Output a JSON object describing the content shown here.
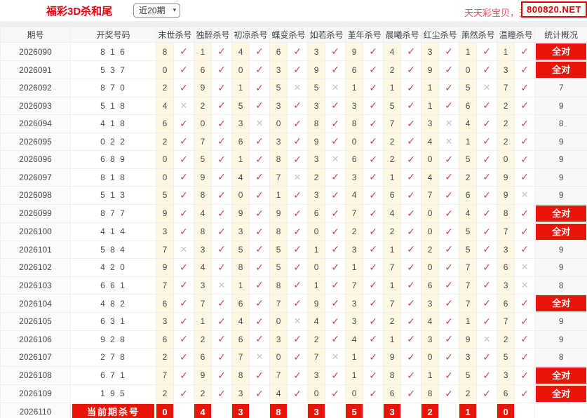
{
  "page": {
    "title": "福彩3D杀和尾",
    "range_selected": "近20期",
    "promo_text": "天天彩宝贝，天",
    "site_badge": "800820.NET"
  },
  "colors": {
    "accent_red": "#e60012",
    "badge_red": "#e9140a",
    "check_red": "#c9455a",
    "cross_gray": "#c6c6c6",
    "kill_cell_yellow": "#fcf8e2"
  },
  "icons": {
    "check": "✓",
    "cross": "✕",
    "chevron_down": "▾"
  },
  "table": {
    "headers": {
      "period": "期号",
      "draw": "开奖号码",
      "kills": [
        "末世杀号",
        "独醉杀号",
        "初凉杀号",
        "蝶变杀号",
        "如若杀号",
        "堇年杀号",
        "晨曦杀号",
        "红尘杀号",
        "萧然杀号",
        "温瞳杀号"
      ],
      "stats": "统计概况"
    },
    "all_correct_label": "全对",
    "rows": [
      {
        "period": "2026090",
        "draw": "8 1 6",
        "kills": [
          [
            "8",
            1
          ],
          [
            "1",
            1
          ],
          [
            "4",
            1
          ],
          [
            "6",
            1
          ],
          [
            "3",
            1
          ],
          [
            "9",
            1
          ],
          [
            "4",
            1
          ],
          [
            "3",
            1
          ],
          [
            "1",
            1
          ],
          [
            "1",
            1
          ]
        ],
        "stat": "全对"
      },
      {
        "period": "2026091",
        "draw": "5 3 7",
        "kills": [
          [
            "0",
            1
          ],
          [
            "6",
            1
          ],
          [
            "0",
            1
          ],
          [
            "3",
            1
          ],
          [
            "9",
            1
          ],
          [
            "6",
            1
          ],
          [
            "2",
            1
          ],
          [
            "9",
            1
          ],
          [
            "0",
            1
          ],
          [
            "3",
            1
          ]
        ],
        "stat": "全对"
      },
      {
        "period": "2026092",
        "draw": "8 7 0",
        "kills": [
          [
            "2",
            1
          ],
          [
            "9",
            1
          ],
          [
            "1",
            1
          ],
          [
            "5",
            0
          ],
          [
            "5",
            0
          ],
          [
            "1",
            1
          ],
          [
            "1",
            1
          ],
          [
            "1",
            1
          ],
          [
            "5",
            0
          ],
          [
            "7",
            1
          ]
        ],
        "stat": "7"
      },
      {
        "period": "2026093",
        "draw": "5 1 8",
        "kills": [
          [
            "4",
            0
          ],
          [
            "2",
            1
          ],
          [
            "5",
            1
          ],
          [
            "3",
            1
          ],
          [
            "3",
            1
          ],
          [
            "3",
            1
          ],
          [
            "5",
            1
          ],
          [
            "1",
            1
          ],
          [
            "6",
            1
          ],
          [
            "2",
            1
          ]
        ],
        "stat": "9"
      },
      {
        "period": "2026094",
        "draw": "4 1 8",
        "kills": [
          [
            "6",
            1
          ],
          [
            "0",
            1
          ],
          [
            "3",
            0
          ],
          [
            "0",
            1
          ],
          [
            "8",
            1
          ],
          [
            "8",
            1
          ],
          [
            "7",
            1
          ],
          [
            "3",
            0
          ],
          [
            "4",
            1
          ],
          [
            "2",
            1
          ]
        ],
        "stat": "8"
      },
      {
        "period": "2026095",
        "draw": "0 2 2",
        "kills": [
          [
            "2",
            1
          ],
          [
            "7",
            1
          ],
          [
            "6",
            1
          ],
          [
            "3",
            1
          ],
          [
            "9",
            1
          ],
          [
            "0",
            1
          ],
          [
            "2",
            1
          ],
          [
            "4",
            0
          ],
          [
            "1",
            1
          ],
          [
            "2",
            1
          ]
        ],
        "stat": "9"
      },
      {
        "period": "2026096",
        "draw": "6 8 9",
        "kills": [
          [
            "0",
            1
          ],
          [
            "5",
            1
          ],
          [
            "1",
            1
          ],
          [
            "8",
            1
          ],
          [
            "3",
            0
          ],
          [
            "6",
            1
          ],
          [
            "2",
            1
          ],
          [
            "0",
            1
          ],
          [
            "5",
            1
          ],
          [
            "0",
            1
          ]
        ],
        "stat": "9"
      },
      {
        "period": "2026097",
        "draw": "8 1 8",
        "kills": [
          [
            "0",
            1
          ],
          [
            "9",
            1
          ],
          [
            "4",
            1
          ],
          [
            "7",
            0
          ],
          [
            "2",
            1
          ],
          [
            "3",
            1
          ],
          [
            "1",
            1
          ],
          [
            "4",
            1
          ],
          [
            "2",
            1
          ],
          [
            "9",
            1
          ]
        ],
        "stat": "9"
      },
      {
        "period": "2026098",
        "draw": "5 1 3",
        "kills": [
          [
            "5",
            1
          ],
          [
            "8",
            1
          ],
          [
            "0",
            1
          ],
          [
            "1",
            1
          ],
          [
            "3",
            1
          ],
          [
            "4",
            1
          ],
          [
            "6",
            1
          ],
          [
            "7",
            1
          ],
          [
            "6",
            1
          ],
          [
            "9",
            0
          ]
        ],
        "stat": "9"
      },
      {
        "period": "2026099",
        "draw": "8 7 7",
        "kills": [
          [
            "9",
            1
          ],
          [
            "4",
            1
          ],
          [
            "9",
            1
          ],
          [
            "9",
            1
          ],
          [
            "6",
            1
          ],
          [
            "7",
            1
          ],
          [
            "4",
            1
          ],
          [
            "0",
            1
          ],
          [
            "4",
            1
          ],
          [
            "8",
            1
          ]
        ],
        "stat": "全对"
      },
      {
        "period": "2026100",
        "draw": "4 1 4",
        "kills": [
          [
            "3",
            1
          ],
          [
            "8",
            1
          ],
          [
            "3",
            1
          ],
          [
            "8",
            1
          ],
          [
            "0",
            1
          ],
          [
            "2",
            1
          ],
          [
            "2",
            1
          ],
          [
            "0",
            1
          ],
          [
            "5",
            1
          ],
          [
            "7",
            1
          ]
        ],
        "stat": "全对"
      },
      {
        "period": "2026101",
        "draw": "5 8 4",
        "kills": [
          [
            "7",
            0
          ],
          [
            "3",
            1
          ],
          [
            "5",
            1
          ],
          [
            "5",
            1
          ],
          [
            "1",
            1
          ],
          [
            "3",
            1
          ],
          [
            "1",
            1
          ],
          [
            "2",
            1
          ],
          [
            "5",
            1
          ],
          [
            "3",
            1
          ]
        ],
        "stat": "9"
      },
      {
        "period": "2026102",
        "draw": "4 2 0",
        "kills": [
          [
            "9",
            1
          ],
          [
            "4",
            1
          ],
          [
            "8",
            1
          ],
          [
            "5",
            1
          ],
          [
            "0",
            1
          ],
          [
            "1",
            1
          ],
          [
            "7",
            1
          ],
          [
            "0",
            1
          ],
          [
            "7",
            1
          ],
          [
            "6",
            0
          ]
        ],
        "stat": "9"
      },
      {
        "period": "2026103",
        "draw": "6 6 1",
        "kills": [
          [
            "7",
            1
          ],
          [
            "3",
            0
          ],
          [
            "1",
            1
          ],
          [
            "8",
            1
          ],
          [
            "1",
            1
          ],
          [
            "7",
            1
          ],
          [
            "1",
            1
          ],
          [
            "6",
            1
          ],
          [
            "7",
            1
          ],
          [
            "3",
            0
          ]
        ],
        "stat": "8"
      },
      {
        "period": "2026104",
        "draw": "4 8 2",
        "kills": [
          [
            "6",
            1
          ],
          [
            "7",
            1
          ],
          [
            "6",
            1
          ],
          [
            "7",
            1
          ],
          [
            "9",
            1
          ],
          [
            "3",
            1
          ],
          [
            "7",
            1
          ],
          [
            "3",
            1
          ],
          [
            "7",
            1
          ],
          [
            "6",
            1
          ]
        ],
        "stat": "全对"
      },
      {
        "period": "2026105",
        "draw": "6 3 1",
        "kills": [
          [
            "3",
            1
          ],
          [
            "1",
            1
          ],
          [
            "4",
            1
          ],
          [
            "0",
            0
          ],
          [
            "4",
            1
          ],
          [
            "3",
            1
          ],
          [
            "2",
            1
          ],
          [
            "4",
            1
          ],
          [
            "1",
            1
          ],
          [
            "7",
            1
          ]
        ],
        "stat": "9"
      },
      {
        "period": "2026106",
        "draw": "9 2 8",
        "kills": [
          [
            "6",
            1
          ],
          [
            "2",
            1
          ],
          [
            "6",
            1
          ],
          [
            "3",
            1
          ],
          [
            "2",
            1
          ],
          [
            "4",
            1
          ],
          [
            "1",
            1
          ],
          [
            "3",
            1
          ],
          [
            "9",
            0
          ],
          [
            "2",
            1
          ]
        ],
        "stat": "9"
      },
      {
        "period": "2026107",
        "draw": "2 7 8",
        "kills": [
          [
            "2",
            1
          ],
          [
            "6",
            1
          ],
          [
            "7",
            0
          ],
          [
            "0",
            1
          ],
          [
            "7",
            0
          ],
          [
            "1",
            1
          ],
          [
            "9",
            1
          ],
          [
            "0",
            1
          ],
          [
            "3",
            1
          ],
          [
            "5",
            1
          ]
        ],
        "stat": "8"
      },
      {
        "period": "2026108",
        "draw": "6 7 1",
        "kills": [
          [
            "7",
            1
          ],
          [
            "9",
            1
          ],
          [
            "8",
            1
          ],
          [
            "7",
            1
          ],
          [
            "3",
            1
          ],
          [
            "1",
            1
          ],
          [
            "8",
            1
          ],
          [
            "1",
            1
          ],
          [
            "5",
            1
          ],
          [
            "3",
            1
          ]
        ],
        "stat": "全对"
      },
      {
        "period": "2026109",
        "draw": "1 9 5",
        "kills": [
          [
            "2",
            1
          ],
          [
            "2",
            1
          ],
          [
            "3",
            1
          ],
          [
            "4",
            1
          ],
          [
            "0",
            1
          ],
          [
            "0",
            1
          ],
          [
            "6",
            1
          ],
          [
            "8",
            1
          ],
          [
            "2",
            1
          ],
          [
            "6",
            1
          ]
        ],
        "stat": "全对"
      }
    ],
    "current_row": {
      "period": "2026110",
      "label": "当前期杀号",
      "kills": [
        "0",
        "4",
        "3",
        "8",
        "3",
        "5",
        "3",
        "2",
        "1",
        "0"
      ],
      "stat": ""
    }
  }
}
